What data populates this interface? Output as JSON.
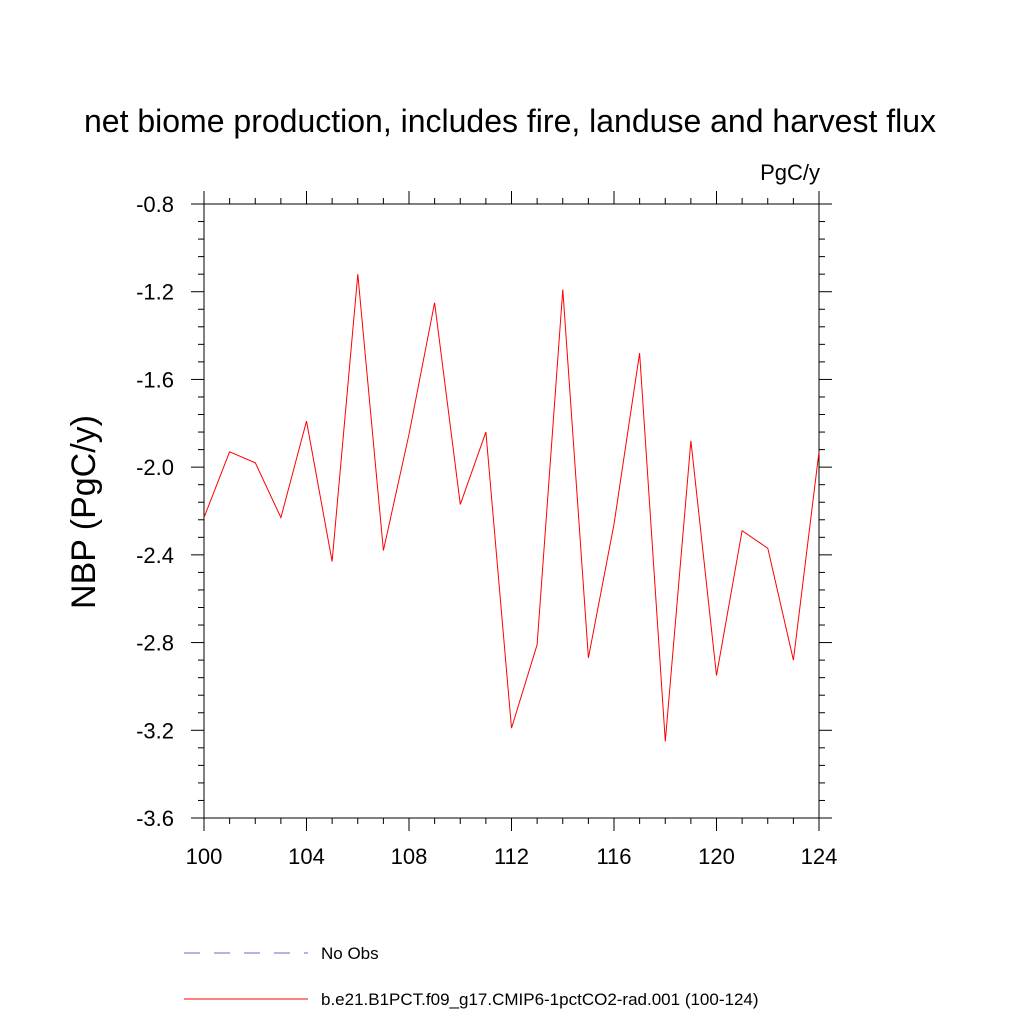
{
  "chart_data": {
    "type": "line",
    "title": "net biome production, includes fire, landuse and harvest flux",
    "units_label": "PgC/y",
    "ylabel": "NBP  (PgC/y)",
    "xlabel": "",
    "xlim": [
      100,
      124
    ],
    "ylim": [
      -3.6,
      -0.8
    ],
    "x_ticks": [
      100,
      104,
      108,
      112,
      116,
      120,
      124
    ],
    "y_ticks": [
      -0.8,
      -1.2,
      -1.6,
      -2.0,
      -2.4,
      -2.8,
      -3.2,
      -3.6
    ],
    "y_tick_labels": [
      "-0.8",
      "-1.2",
      "-1.6",
      "-2.0",
      "-2.4",
      "-2.8",
      "-3.2",
      "-3.6"
    ],
    "grid": false,
    "legend_position": "bottom",
    "series": [
      {
        "name": "b.e21.B1PCT.f09_g17.CMIP6-1pctCO2-rad.001 (100-124)",
        "color": "#ff0000",
        "style": "solid",
        "x": [
          100,
          101,
          102,
          103,
          104,
          105,
          106,
          107,
          108,
          109,
          110,
          111,
          112,
          113,
          114,
          115,
          116,
          117,
          118,
          119,
          120,
          121,
          122,
          123,
          124
        ],
        "y": [
          -2.23,
          -1.93,
          -1.98,
          -2.23,
          -1.79,
          -2.43,
          -1.12,
          -2.38,
          -1.85,
          -1.25,
          -2.17,
          -1.84,
          -3.19,
          -2.81,
          -1.19,
          -2.87,
          -2.26,
          -1.48,
          -3.25,
          -1.88,
          -2.95,
          -2.29,
          -2.37,
          -2.88,
          -1.93
        ]
      }
    ],
    "legend": [
      {
        "label": "No Obs",
        "color": "#6a6ac8",
        "style": "dashed"
      },
      {
        "label": "b.e21.B1PCT.f09_g17.CMIP6-1pctCO2-rad.001 (100-124)",
        "color": "#ff0000",
        "style": "solid"
      }
    ]
  }
}
